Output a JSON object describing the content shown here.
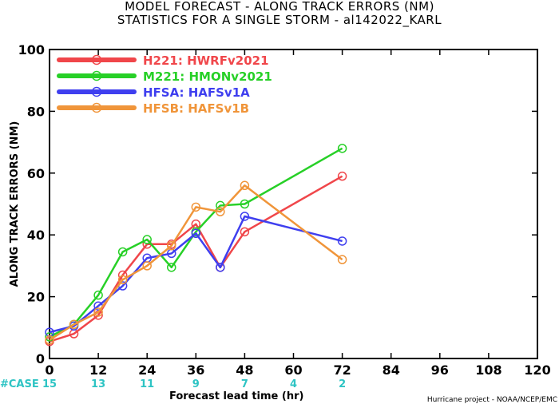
{
  "chart_data": {
    "type": "line",
    "title": "MODEL FORECAST - ALONG TRACK ERRORS (NM)",
    "subtitle": "STATISTICS FOR A SINGLE STORM - al142022_KARL",
    "xlabel": "Forecast lead time (hr)",
    "ylabel": "ALONG TRACK ERRORS (NM)",
    "xlim": [
      0,
      120
    ],
    "ylim": [
      0,
      100
    ],
    "xticks": [
      0,
      12,
      24,
      36,
      48,
      60,
      72,
      84,
      96,
      108,
      120
    ],
    "yticks": [
      0,
      20,
      40,
      60,
      80,
      100
    ],
    "grid": false,
    "legend_position": "top-left",
    "case_label": "#CASE",
    "cases": [
      {
        "x": 0,
        "n": "15"
      },
      {
        "x": 12,
        "n": "13"
      },
      {
        "x": 24,
        "n": "11"
      },
      {
        "x": 36,
        "n": "9"
      },
      {
        "x": 48,
        "n": "7"
      },
      {
        "x": 60,
        "n": "4"
      },
      {
        "x": 72,
        "n": "2"
      }
    ],
    "credit": "Hurricane project - NOAA/NCEP/EMC",
    "series": [
      {
        "name": "H221: HWRFv2021",
        "color": "#f0464a",
        "x": [
          0,
          6,
          12,
          18,
          24,
          30,
          36,
          42,
          48,
          72
        ],
        "y": [
          5.5,
          8,
          14,
          27,
          37,
          37,
          43.5,
          29.5,
          41,
          59
        ]
      },
      {
        "name": "M221: HMONv2021",
        "color": "#27d027",
        "x": [
          0,
          6,
          12,
          18,
          24,
          30,
          36,
          42,
          48,
          72
        ],
        "y": [
          7,
          11,
          20.5,
          34.5,
          38.5,
          29.5,
          41,
          49.5,
          50,
          68
        ]
      },
      {
        "name": "HFSA: HAFSv1A",
        "color": "#3f3fef",
        "x": [
          0,
          6,
          12,
          18,
          24,
          30,
          36,
          42,
          48,
          72
        ],
        "y": [
          8.5,
          10.5,
          17,
          23.5,
          32.5,
          34,
          40.5,
          29.5,
          46,
          38
        ]
      },
      {
        "name": "HFSB: HAFSv1B",
        "color": "#f0953a",
        "x": [
          0,
          6,
          12,
          18,
          24,
          30,
          36,
          42,
          48,
          72
        ],
        "y": [
          6,
          11,
          15,
          25.5,
          30,
          36.5,
          49,
          47.5,
          56,
          32
        ]
      }
    ]
  }
}
